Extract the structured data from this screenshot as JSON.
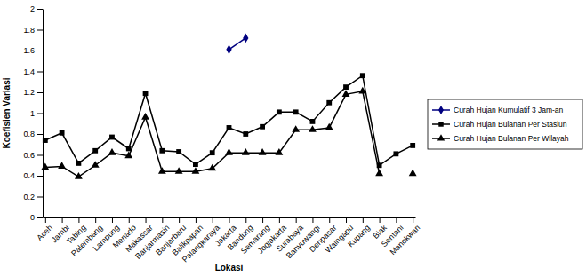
{
  "chart_data": {
    "type": "line",
    "x_label": "Lokasi",
    "y_label": "Koefisien Variasi",
    "categories": [
      "Aceh",
      "Jambi",
      "Tabing",
      "Palembang",
      "Lampung",
      "Menado",
      "Makassar",
      "Banjarmasin",
      "Banjarbaru",
      "Balikpapan",
      "Palangkaraya",
      "Jakarta",
      "Bandung",
      "Semarang",
      "Jogjakarta",
      "Surabaya",
      "Banyuwangi",
      "Denpasar",
      "Waingapu",
      "Kupang",
      "Biak",
      "Sentani",
      "Manokwari"
    ],
    "series": [
      {
        "name": "Curah Hujan Kumulatif 3 Jam-an",
        "color": "#000080",
        "marker": "diamond",
        "values": [
          null,
          null,
          null,
          null,
          null,
          null,
          null,
          null,
          null,
          null,
          null,
          1.61,
          1.72,
          null,
          null,
          null,
          null,
          null,
          null,
          null,
          null,
          null,
          null
        ]
      },
      {
        "name": "Curah Hujan Bulanan Per Stasiun",
        "color": "#000000",
        "marker": "square",
        "values": [
          0.74,
          0.81,
          0.52,
          0.64,
          0.77,
          0.66,
          1.19,
          0.64,
          0.63,
          0.51,
          0.62,
          0.86,
          0.8,
          0.87,
          1.01,
          1.01,
          0.92,
          1.1,
          1.25,
          1.36,
          0.5,
          0.61,
          0.69
        ]
      },
      {
        "name": "Curah Hujan Bulanan Per Wilayah",
        "color": "#000000",
        "marker": "triangle",
        "values": [
          0.48,
          0.49,
          0.39,
          0.5,
          0.62,
          0.59,
          0.96,
          0.44,
          0.44,
          0.44,
          0.47,
          0.62,
          0.62,
          0.62,
          0.62,
          0.84,
          0.84,
          0.86,
          1.18,
          1.21,
          0.42,
          null,
          0.42
        ]
      }
    ],
    "ylim": [
      0,
      2
    ],
    "yticks": [
      0,
      0.2,
      0.4,
      0.6,
      0.8,
      1,
      1.2,
      1.4,
      1.6,
      1.8,
      2
    ],
    "grid": false,
    "legend": "right"
  }
}
